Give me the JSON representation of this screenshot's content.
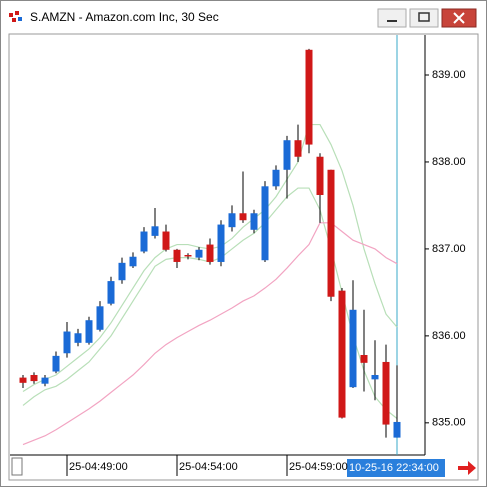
{
  "window": {
    "title": "S.AMZN - Amazon.com Inc, 30 Sec"
  },
  "chart_data": {
    "type": "candlestick",
    "categories": [
      null,
      null,
      null,
      null,
      "25-04:49:00",
      null,
      null,
      null,
      null,
      null,
      null,
      null,
      null,
      null,
      "25-04:54:00",
      null,
      null,
      null,
      null,
      null,
      null,
      null,
      null,
      null,
      "25-04:59:00",
      null,
      null,
      null,
      null,
      null,
      null,
      null,
      null,
      null,
      null
    ],
    "open": [
      835.52,
      835.55,
      835.45,
      835.59,
      835.8,
      835.92,
      835.92,
      836.07,
      836.37,
      836.64,
      836.8,
      836.97,
      837.15,
      837.2,
      836.99,
      836.93,
      836.9,
      837.05,
      836.85,
      837.25,
      837.41,
      837.22,
      836.87,
      837.72,
      837.91,
      838.25,
      839.29,
      838.06,
      837.91,
      836.52,
      835.41,
      835.78,
      835.5,
      835.7,
      834.83
    ],
    "high": [
      835.55,
      835.58,
      835.55,
      835.82,
      836.16,
      836.08,
      836.22,
      836.4,
      836.68,
      836.9,
      836.96,
      837.25,
      837.47,
      837.28,
      837.0,
      836.95,
      837.02,
      837.12,
      837.33,
      837.5,
      837.89,
      837.45,
      837.78,
      837.96,
      838.3,
      838.43,
      839.3,
      838.1,
      837.91,
      836.55,
      836.64,
      836.3,
      835.95,
      835.9,
      835.66
    ],
    "low": [
      835.4,
      835.45,
      835.42,
      835.57,
      835.75,
      835.88,
      835.9,
      836.05,
      836.35,
      836.6,
      836.78,
      836.95,
      837.12,
      836.97,
      836.78,
      836.88,
      836.87,
      836.82,
      836.8,
      837.2,
      837.3,
      837.18,
      836.85,
      837.68,
      837.58,
      838.0,
      838.1,
      837.3,
      836.4,
      835.05,
      835.4,
      835.36,
      835.26,
      834.83,
      834.83
    ],
    "close": [
      835.46,
      835.48,
      835.52,
      835.77,
      836.05,
      836.03,
      836.18,
      836.34,
      836.63,
      836.84,
      836.91,
      837.2,
      837.26,
      836.99,
      836.85,
      836.92,
      836.99,
      836.85,
      837.28,
      837.41,
      837.33,
      837.41,
      837.72,
      837.91,
      838.25,
      838.06,
      838.2,
      837.62,
      836.45,
      835.06,
      836.3,
      835.69,
      835.55,
      834.98,
      835.01
    ],
    "up_color": "#1a6ad6",
    "down_color": "#d01818",
    "lines": [
      {
        "color": "#b8dfb8",
        "values": [
          835.36,
          835.44,
          835.5,
          835.55,
          835.65,
          835.75,
          835.85,
          835.98,
          836.15,
          836.35,
          836.55,
          836.75,
          836.9,
          837.0,
          837.05,
          837.05,
          837.02,
          837.0,
          837.03,
          837.12,
          837.25,
          837.35,
          837.45,
          837.6,
          837.8,
          838.0,
          838.43,
          838.43,
          838.2,
          837.9,
          837.5,
          837.0,
          836.6,
          836.25,
          836.1
        ]
      },
      {
        "color": "#b8dfb8",
        "values": [
          835.2,
          835.3,
          835.38,
          835.42,
          835.5,
          835.6,
          835.7,
          835.85,
          836.0,
          836.2,
          836.4,
          836.6,
          836.8,
          836.88,
          836.9,
          836.9,
          836.88,
          836.85,
          836.9,
          837.0,
          837.1,
          837.18,
          837.3,
          837.45,
          837.6,
          837.7,
          837.7,
          837.45,
          837.0,
          836.5,
          836.0,
          835.6,
          835.3,
          835.15,
          835.05
        ]
      },
      {
        "color": "#f2a4c2",
        "values": [
          834.75,
          834.8,
          834.85,
          834.92,
          835.0,
          835.08,
          835.16,
          835.25,
          835.35,
          835.45,
          835.55,
          835.67,
          835.8,
          835.9,
          835.98,
          836.05,
          836.12,
          836.18,
          836.25,
          836.32,
          836.4,
          836.46,
          836.55,
          836.65,
          836.78,
          836.92,
          837.05,
          837.3,
          837.3,
          837.2,
          837.1,
          837.05,
          837.0,
          836.9,
          836.83
        ]
      }
    ],
    "ylim": [
      834.63,
      839.46
    ],
    "yticks": [
      {
        "value": 835,
        "label": "835.00"
      },
      {
        "value": 836,
        "label": "836.00"
      },
      {
        "value": 837,
        "label": "837.00"
      },
      {
        "value": 838,
        "label": "838.00"
      },
      {
        "value": 839,
        "label": "839.00"
      }
    ],
    "cursor_label": "10-25-16 22:34:00"
  }
}
